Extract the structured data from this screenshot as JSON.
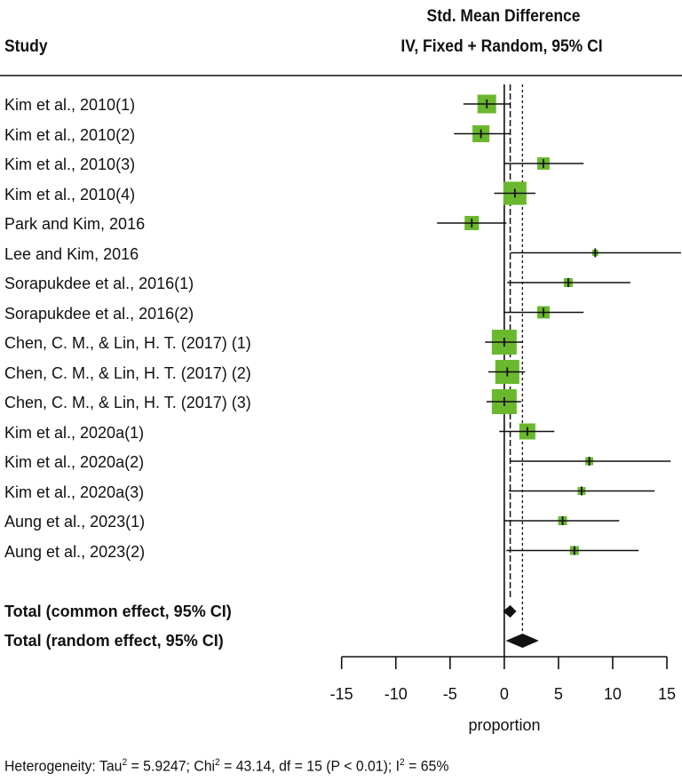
{
  "chart_data": {
    "type": "forest",
    "title": "Std. Mean Difference",
    "subtitle": "IV, Fixed + Random, 95% CI",
    "column_header": "Study",
    "xlabel": "proportion",
    "xlim": [
      -15,
      15
    ],
    "xticks": [
      -15,
      -10,
      -5,
      0,
      5,
      10,
      15
    ],
    "box_color": "#6ab82e",
    "studies": [
      {
        "label": "Kim et al., 2010(1)",
        "est": -1.61,
        "lo": -3.77,
        "hi": 0.57,
        "weight": 8.4
      },
      {
        "label": "Kim et al., 2010(2)",
        "est": -2.15,
        "lo": -4.64,
        "hi": 0.57,
        "weight": 6.9
      },
      {
        "label": "Kim et al., 2010(3)",
        "est": 3.61,
        "lo": 0.03,
        "hi": 7.32,
        "weight": 3.7
      },
      {
        "label": "Kim et al., 2010(4)",
        "est": 0.98,
        "lo": -0.93,
        "hi": 2.87,
        "weight": 12.9
      },
      {
        "label": "Park and Kim, 2016",
        "est": -3.0,
        "lo": -6.2,
        "hi": 0.2,
        "weight": 4.9
      },
      {
        "label": "Lee and Kim, 2016",
        "est": 8.39,
        "lo": 0.55,
        "hi": 16.3,
        "weight": 0.9
      },
      {
        "label": "Sorapukdee et al., 2016(1)",
        "est": 5.9,
        "lo": 0.28,
        "hi": 11.63,
        "weight": 1.9
      },
      {
        "label": "Sorapukdee et al., 2016(2)",
        "est": 3.61,
        "lo": 0.03,
        "hi": 7.32,
        "weight": 3.7
      },
      {
        "label": "Chen, C. M., & Lin, H. T. (2017) (1)",
        "est": 0.0,
        "lo": -1.77,
        "hi": 1.7,
        "weight": 14.9
      },
      {
        "label": "Chen, C. M., & Lin, H. T. (2017) (2)",
        "est": 0.28,
        "lo": -1.47,
        "hi": 1.92,
        "weight": 13.9
      },
      {
        "label": "Chen, C. M., & Lin, H. T. (2017) (3)",
        "est": 0.0,
        "lo": -1.64,
        "hi": 1.56,
        "weight": 14.9
      },
      {
        "label": "Kim et al., 2020a(1)",
        "est": 2.13,
        "lo": -0.46,
        "hi": 4.62,
        "weight": 6.2
      },
      {
        "label": "Kim et al., 2020a(2)",
        "est": 7.84,
        "lo": 0.55,
        "hi": 15.35,
        "weight": 1.5
      },
      {
        "label": "Kim et al., 2020a(3)",
        "est": 7.13,
        "lo": 0.41,
        "hi": 13.87,
        "weight": 1.5
      },
      {
        "label": "Aung et al., 2023(1)",
        "est": 5.38,
        "lo": 0.03,
        "hi": 10.6,
        "weight": 1.9
      },
      {
        "label": "Aung et al., 2023(2)",
        "est": 6.47,
        "lo": 0.2,
        "hi": 12.4,
        "weight": 1.9
      }
    ],
    "totals": [
      {
        "label": "Total (common effect, 95% CI)",
        "est": 0.55,
        "lo": -0.13,
        "hi": 1.12
      },
      {
        "label": "Total (random effect, 95% CI)",
        "est": 1.68,
        "lo": 0.14,
        "hi": 3.19
      }
    ],
    "heterogeneity": {
      "prefix": "Heterogeneity: Tau",
      "tau2": "= 5.9247; Chi",
      "chi2": "= 43.14, df = 15 (P < 0.01); I",
      "i2": "= 65%",
      "sup": "2"
    }
  }
}
